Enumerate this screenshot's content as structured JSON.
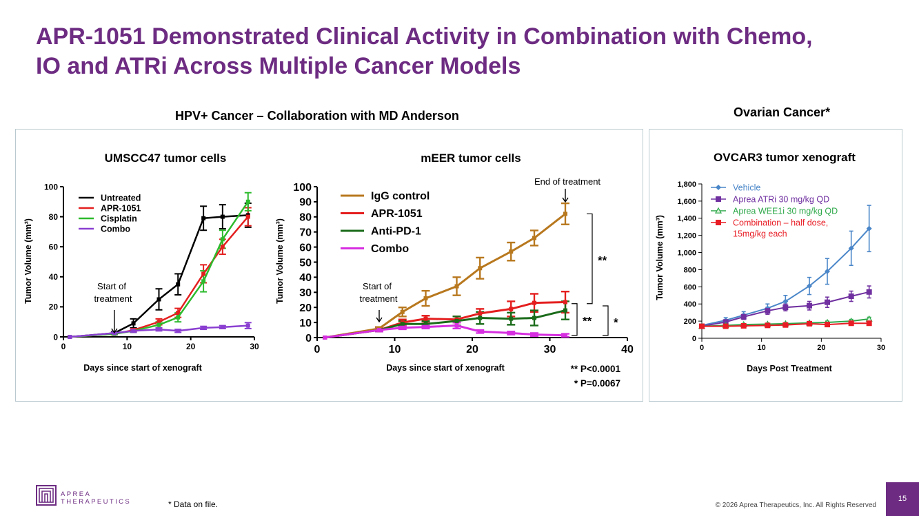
{
  "slide": {
    "title_line1": "APR-1051 Demonstrated Clinical Activity in Combination with Chemo,",
    "title_line2": "IO and ATRi Across Multiple Cancer Models",
    "section_hpv": "HPV+ Cancer – Collaboration with MD Anderson",
    "section_ovarian": "Ovarian Cancer*",
    "footnote": "* Data on file.",
    "copyright": "© 2026 Aprea Therapeutics, Inc. All Rights Reserved",
    "page_number": "15",
    "logo_line1": "APREA",
    "logo_line2": "THERAPEUTICS"
  },
  "colors": {
    "brand": "#6d2c82",
    "panel_border": "#b9c9cf"
  },
  "chart_data": [
    {
      "id": "umscc47",
      "type": "line",
      "title": "UMSCC47 tumor cells",
      "xlabel": "Days since start of xenograft",
      "ylabel": "Tumor Volume (mm³)",
      "xlim": [
        0,
        30
      ],
      "ylim": [
        0,
        100
      ],
      "xticks": [
        0,
        10,
        20,
        30
      ],
      "yticks": [
        0,
        20,
        40,
        60,
        80,
        100
      ],
      "legend": "top-left",
      "series": [
        {
          "name": "Untreated",
          "color": "#000000",
          "x": [
            1,
            8,
            11,
            15,
            18,
            22,
            25,
            29
          ],
          "y": [
            0,
            2.5,
            9,
            25,
            35,
            79,
            80,
            81
          ],
          "err": [
            0,
            1,
            3,
            7,
            7,
            8,
            8,
            8
          ]
        },
        {
          "name": "APR-1051",
          "color": "#e41e1e",
          "x": [
            1,
            8,
            11,
            15,
            18,
            22,
            25,
            29
          ],
          "y": [
            0,
            2,
            4.5,
            10,
            16,
            42,
            60,
            80
          ],
          "err": [
            0,
            0.5,
            1,
            2,
            3,
            6,
            5,
            6
          ]
        },
        {
          "name": "Cisplatin",
          "color": "#2dbb2d",
          "x": [
            1,
            8,
            11,
            15,
            18,
            22,
            25,
            29
          ],
          "y": [
            0,
            2,
            4,
            8,
            13,
            37,
            65,
            90
          ],
          "err": [
            0,
            0.5,
            1,
            2,
            3,
            7,
            6,
            6
          ]
        },
        {
          "name": "Combo",
          "color": "#8a3fd1",
          "x": [
            1,
            8,
            11,
            15,
            18,
            22,
            25,
            29
          ],
          "y": [
            0,
            2.5,
            4,
            5,
            4,
            6,
            6.5,
            7.5
          ],
          "err": [
            0,
            0.5,
            1,
            1,
            1,
            1,
            1,
            2
          ]
        }
      ],
      "annotations": [
        {
          "text_line1": "Start of",
          "text_line2": "treatment",
          "x": 8
        }
      ]
    },
    {
      "id": "meer",
      "type": "line",
      "title": "mEER tumor cells",
      "xlabel": "Days since start of xenograft",
      "ylabel": "Tumor Volume (mm³)",
      "xlim": [
        0,
        40
      ],
      "ylim": [
        0,
        100
      ],
      "xticks": [
        0,
        10,
        20,
        30,
        40
      ],
      "yticks": [
        0,
        10,
        20,
        30,
        40,
        50,
        60,
        70,
        80,
        90,
        100
      ],
      "legend": "top-left",
      "series": [
        {
          "name": "IgG control",
          "color": "#b8781e",
          "x": [
            1,
            8,
            11,
            14,
            18,
            21,
            25,
            28,
            32
          ],
          "y": [
            0,
            6,
            17,
            26,
            34,
            46,
            57,
            66,
            82
          ],
          "err": [
            0,
            1,
            3,
            5,
            6,
            7,
            6,
            5,
            7
          ]
        },
        {
          "name": "APR-1051",
          "color": "#e41e1e",
          "x": [
            1,
            8,
            11,
            14,
            18,
            21,
            25,
            28,
            32
          ],
          "y": [
            0,
            5,
            10,
            12.5,
            12,
            16,
            19,
            23,
            23.5
          ],
          "err": [
            0,
            1,
            2,
            2,
            2,
            3,
            5,
            6,
            7
          ]
        },
        {
          "name": "Anti-PD-1",
          "color": "#1a6b1a",
          "x": [
            1,
            8,
            11,
            14,
            18,
            21,
            25,
            28,
            32
          ],
          "y": [
            0,
            5,
            9,
            9,
            11,
            13,
            12.5,
            13,
            18
          ],
          "err": [
            0,
            1,
            2,
            2,
            3,
            4,
            4,
            5,
            6
          ]
        },
        {
          "name": "Combo",
          "color": "#d62ee0",
          "x": [
            1,
            8,
            11,
            14,
            18,
            21,
            25,
            28,
            32
          ],
          "y": [
            0,
            5,
            6.5,
            7,
            8,
            4,
            3,
            2,
            1.5
          ],
          "err": [
            0,
            1,
            1,
            1,
            2,
            1,
            1,
            1,
            1
          ]
        }
      ],
      "annotations": [
        {
          "text_line1": "Start of",
          "text_line2": "treatment",
          "x": 8
        },
        {
          "text": "End of treatment",
          "x": 32
        }
      ],
      "significance": [
        {
          "label": "**",
          "note": "IgG control vs APR-1051"
        },
        {
          "label": "**",
          "note": "APR-1051 vs Combo"
        },
        {
          "label": "*",
          "note": "Anti-PD-1 vs Combo"
        }
      ],
      "pvalues": [
        "** P<0.0001",
        "* P=0.0067"
      ]
    },
    {
      "id": "ovcar3",
      "type": "line",
      "title": "OVCAR3 tumor xenograft",
      "xlabel": "Days Post Treatment",
      "ylabel": "Tumor Volume (mm³)",
      "xlim": [
        0,
        30
      ],
      "ylim": [
        0,
        1800
      ],
      "xticks": [
        0,
        10,
        20,
        30
      ],
      "yticks": [
        0,
        200,
        400,
        600,
        800,
        1000,
        1200,
        1400,
        1600,
        1800
      ],
      "ytick_labels": [
        "0",
        "200",
        "400",
        "600",
        "800",
        "1,000",
        "1,200",
        "1,400",
        "1,600",
        "1,800"
      ],
      "legend": "top-left",
      "series": [
        {
          "name": "Vehicle",
          "color": "#4a86c8",
          "marker": "diamond",
          "x": [
            0,
            4,
            7,
            11,
            14,
            18,
            21,
            25,
            28
          ],
          "y": [
            150,
            210,
            270,
            350,
            430,
            610,
            780,
            1050,
            1280
          ],
          "err": [
            0,
            30,
            40,
            50,
            70,
            100,
            150,
            200,
            270
          ]
        },
        {
          "name": "Aprea ATRi 30 mg/kg QD",
          "color": "#7030a0",
          "marker": "square",
          "x": [
            0,
            4,
            7,
            11,
            14,
            18,
            21,
            25,
            28
          ],
          "y": [
            140,
            190,
            250,
            320,
            360,
            380,
            420,
            490,
            540
          ],
          "err": [
            0,
            20,
            30,
            40,
            40,
            50,
            60,
            60,
            70
          ]
        },
        {
          "name": "Aprea WEE1i 30 mg/kg QD",
          "color": "#2ea84a",
          "marker": "triangle",
          "x": [
            0,
            4,
            7,
            11,
            14,
            18,
            21,
            25,
            28
          ],
          "y": [
            140,
            150,
            160,
            165,
            170,
            180,
            185,
            200,
            225
          ],
          "err": [
            0,
            10,
            10,
            10,
            10,
            15,
            15,
            20,
            20
          ]
        },
        {
          "name": "Combination – half dose,",
          "name_line2": "15mg/kg each",
          "color": "#e81c24",
          "marker": "square",
          "x": [
            0,
            4,
            7,
            11,
            14,
            18,
            21,
            25,
            28
          ],
          "y": [
            140,
            140,
            145,
            150,
            155,
            170,
            160,
            175,
            175
          ],
          "err": [
            0,
            10,
            10,
            10,
            10,
            15,
            15,
            15,
            15
          ]
        }
      ]
    }
  ]
}
